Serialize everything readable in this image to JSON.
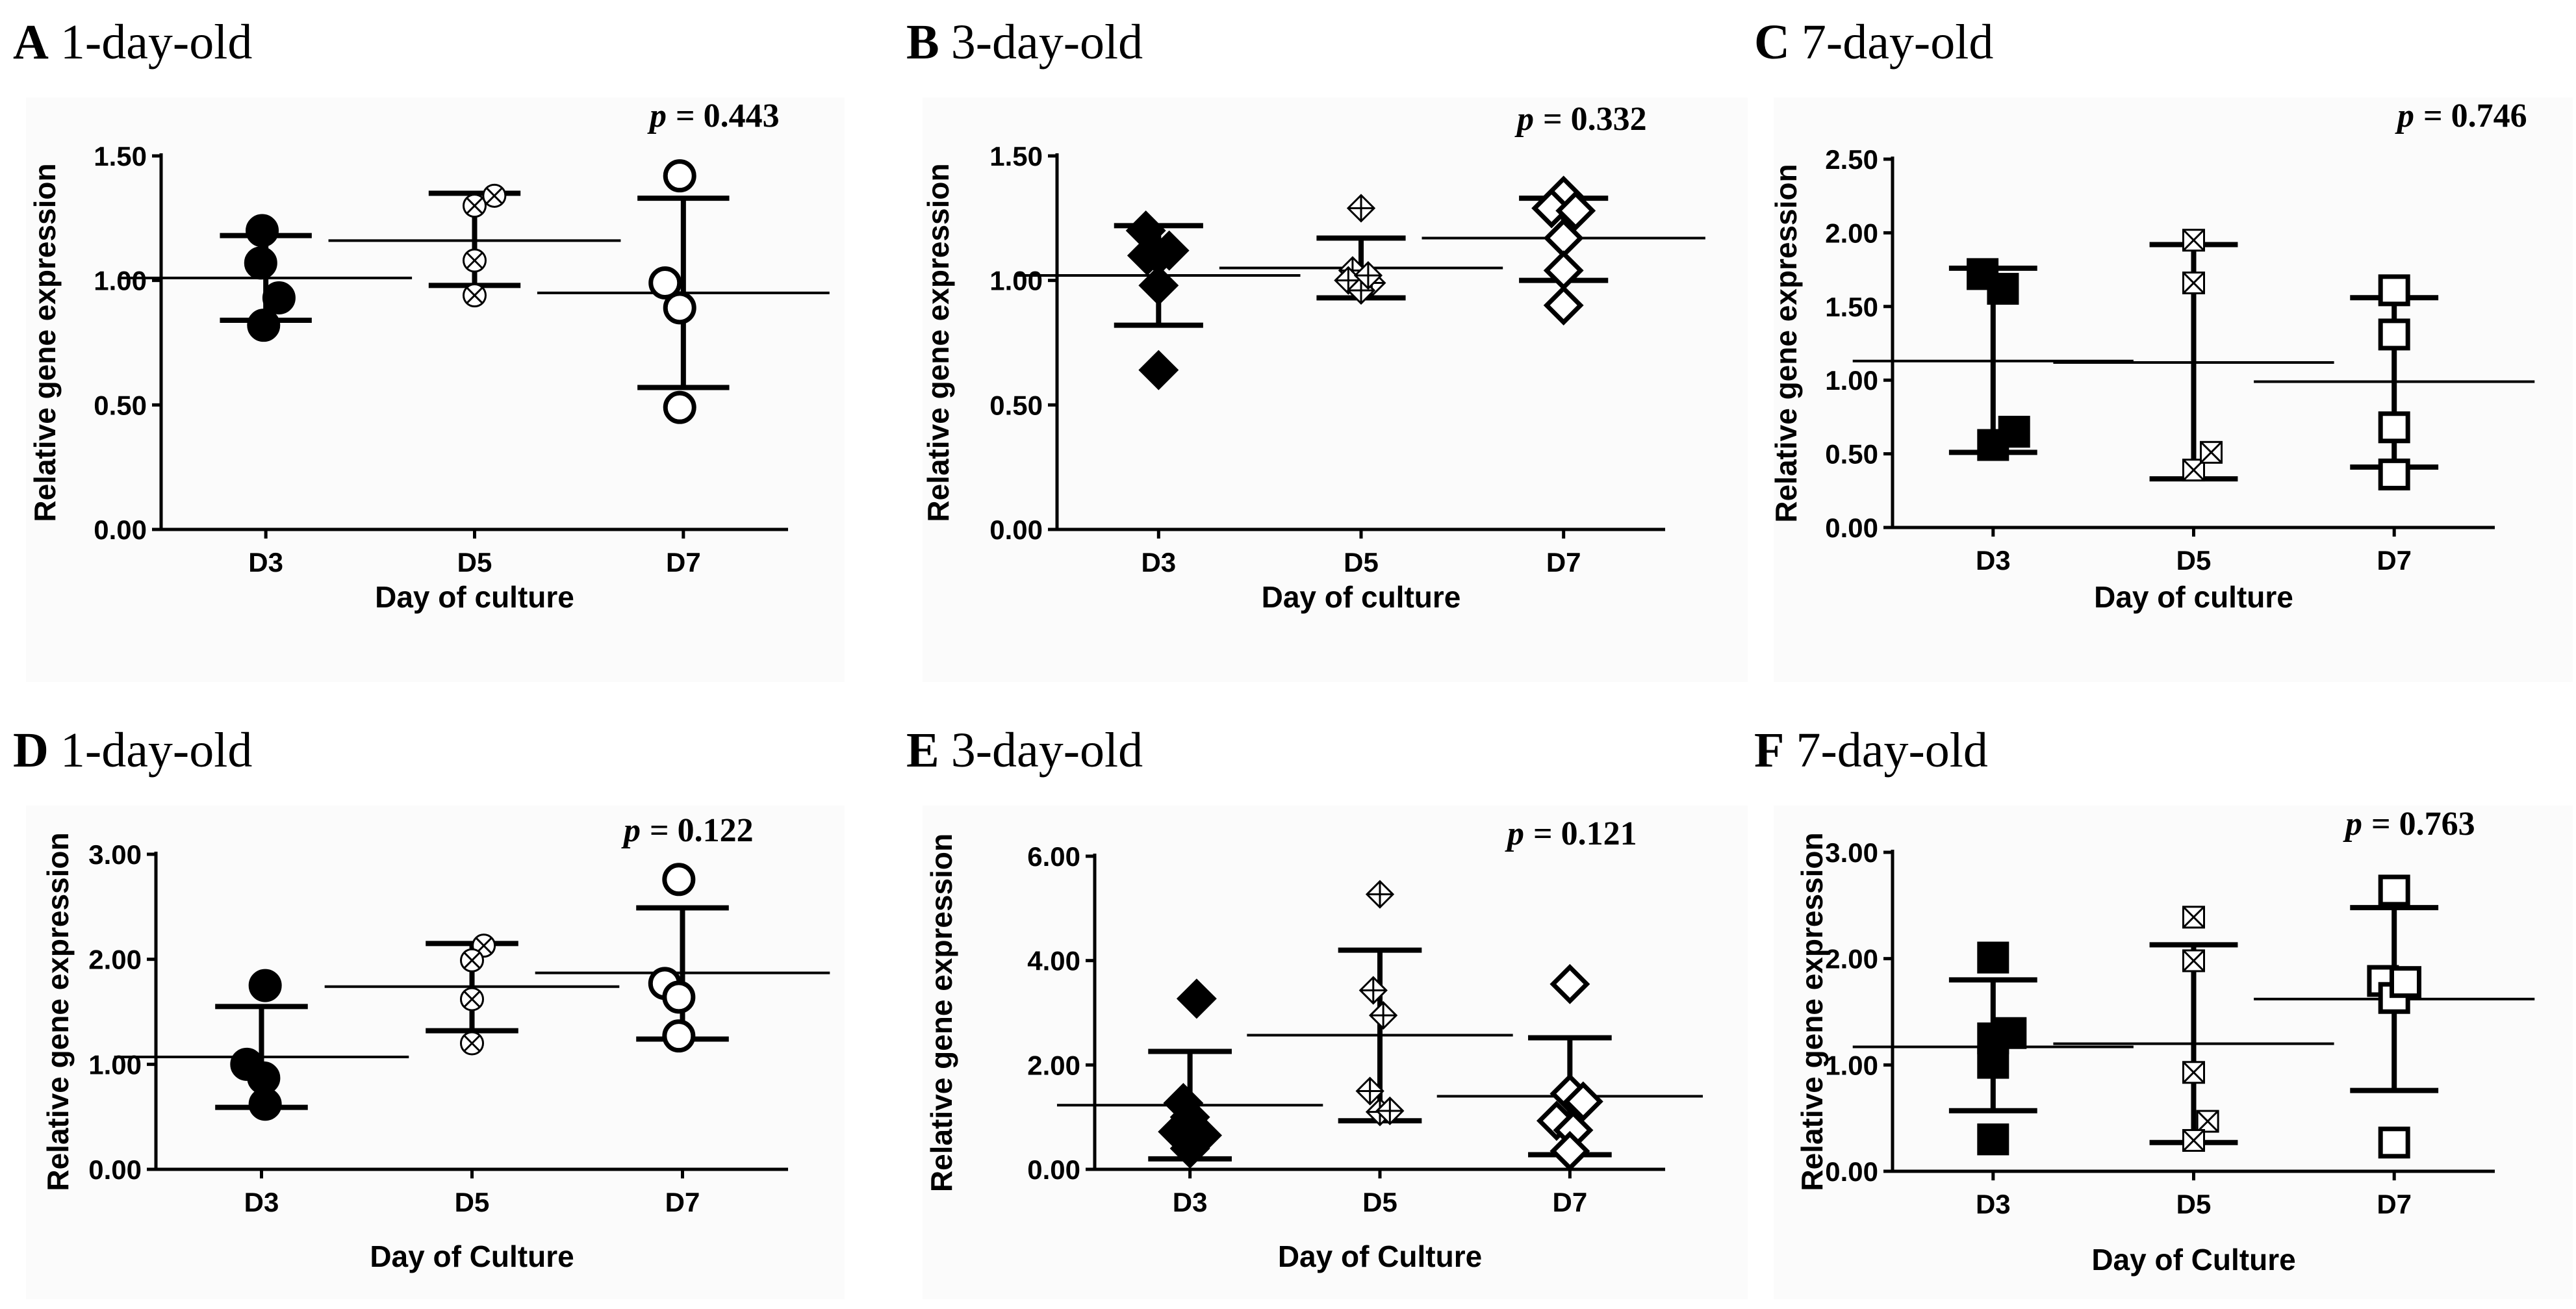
{
  "figure": {
    "groups": [
      "D3",
      "D5",
      "D7"
    ],
    "colors": {
      "ink": "#000000",
      "panel_bg": "#fbfbfb"
    }
  },
  "chart_data": [
    {
      "type": "scatter",
      "letter": "A",
      "title": "1-day-old",
      "p_label": "p",
      "p_value": "= 0.443",
      "xlabel": "Day of culture",
      "ylabel": "Relative gene expression",
      "categories": [
        "D3",
        "D5",
        "D7"
      ],
      "ylim": [
        0,
        1.5
      ],
      "yticks": [
        0,
        0.5,
        1,
        1.5
      ],
      "ytick_labels": [
        "0.00",
        "0.50",
        "1.00",
        "1.50"
      ],
      "series": [
        {
          "name": "D3",
          "marker": "circle-filled",
          "points": [
            [
              -0.05,
              1.2
            ],
            [
              -0.07,
              1.07
            ],
            [
              0.18,
              0.93
            ],
            [
              -0.03,
              0.82
            ]
          ],
          "mean": 1.01,
          "sd_low": 0.84,
          "sd_high": 1.18
        },
        {
          "name": "D5",
          "marker": "circle-x",
          "points": [
            [
              0.0,
              1.3
            ],
            [
              0.27,
              1.34
            ],
            [
              0.0,
              1.08
            ],
            [
              0.0,
              0.94
            ]
          ],
          "mean": 1.16,
          "sd_low": 0.98,
          "sd_high": 1.35
        },
        {
          "name": "D7",
          "marker": "circle-open",
          "points": [
            [
              -0.05,
              1.42
            ],
            [
              -0.25,
              0.99
            ],
            [
              -0.05,
              0.89
            ],
            [
              -0.05,
              0.49
            ]
          ],
          "mean": 0.95,
          "sd_low": 0.57,
          "sd_high": 1.33
        }
      ]
    },
    {
      "type": "scatter",
      "letter": "B",
      "title": "3-day-old",
      "p_label": "p",
      "p_value": "= 0.332",
      "xlabel": "Day of culture",
      "ylabel": "Relative gene expression",
      "categories": [
        "D3",
        "D5",
        "D7"
      ],
      "ylim": [
        0,
        1.5
      ],
      "yticks": [
        0,
        0.5,
        1,
        1.5
      ],
      "ytick_labels": [
        "0.00",
        "0.50",
        "1.00",
        "1.50"
      ],
      "series": [
        {
          "name": "D3",
          "marker": "diamond-filled",
          "points": [
            [
              -0.18,
              1.2
            ],
            [
              -0.16,
              1.1
            ],
            [
              0.15,
              1.12
            ],
            [
              0.0,
              0.98
            ],
            [
              0.0,
              0.64
            ],
            [
              0.0,
              1.1
            ]
          ],
          "mean": 1.02,
          "sd_low": 0.82,
          "sd_high": 1.22
        },
        {
          "name": "D5",
          "marker": "diamond-plus",
          "points": [
            [
              0.0,
              1.29
            ],
            [
              -0.12,
              1.04
            ],
            [
              -0.18,
              1.0
            ],
            [
              0.15,
              0.99
            ],
            [
              0.0,
              0.96
            ],
            [
              0.1,
              1.02
            ]
          ],
          "mean": 1.05,
          "sd_low": 0.93,
          "sd_high": 1.17
        },
        {
          "name": "D7",
          "marker": "diamond-open",
          "points": [
            [
              0.0,
              1.34
            ],
            [
              -0.17,
              1.29
            ],
            [
              0.17,
              1.28
            ],
            [
              0.0,
              1.17
            ],
            [
              0.0,
              1.04
            ],
            [
              0.0,
              0.9
            ]
          ],
          "mean": 1.17,
          "sd_low": 1.0,
          "sd_high": 1.33
        }
      ]
    },
    {
      "type": "scatter",
      "letter": "C",
      "title": "7-day-old",
      "p_label": "p",
      "p_value": "= 0.746",
      "xlabel": "Day of culture",
      "ylabel": "Relative gene expression",
      "categories": [
        "D3",
        "D5",
        "D7"
      ],
      "ylim": [
        0,
        2.5
      ],
      "yticks": [
        0,
        0.5,
        1,
        1.5,
        2,
        2.5
      ],
      "ytick_labels": [
        "0.00",
        "0.50",
        "1.00",
        "1.50",
        "2.00",
        "2.50"
      ],
      "series": [
        {
          "name": "D3",
          "marker": "square-filled",
          "points": [
            [
              -0.15,
              1.72
            ],
            [
              0.14,
              1.62
            ],
            [
              0.0,
              0.56
            ],
            [
              0.3,
              0.65
            ]
          ],
          "mean": 1.13,
          "sd_low": 0.51,
          "sd_high": 1.76
        },
        {
          "name": "D5",
          "marker": "square-x",
          "points": [
            [
              0.0,
              1.95
            ],
            [
              0.0,
              1.66
            ],
            [
              0.0,
              0.39
            ],
            [
              0.25,
              0.51
            ]
          ],
          "mean": 1.12,
          "sd_low": 0.33,
          "sd_high": 1.92
        },
        {
          "name": "D7",
          "marker": "square-open",
          "points": [
            [
              0.0,
              1.61
            ],
            [
              0.0,
              1.31
            ],
            [
              0.0,
              0.68
            ],
            [
              0.0,
              0.36
            ]
          ],
          "mean": 0.99,
          "sd_low": 0.41,
          "sd_high": 1.56
        }
      ]
    },
    {
      "type": "scatter",
      "letter": "D",
      "title": "1-day-old",
      "p_label": "p",
      "p_value": "= 0.122",
      "xlabel": "Day of Culture",
      "ylabel": "Relative gene expression",
      "categories": [
        "D3",
        "D5",
        "D7"
      ],
      "ylim": [
        0,
        3
      ],
      "yticks": [
        0,
        1,
        2,
        3
      ],
      "ytick_labels": [
        "0.00",
        "1.00",
        "2.00",
        "3.00"
      ],
      "series": [
        {
          "name": "D3",
          "marker": "circle-filled",
          "points": [
            [
              0.05,
              1.75
            ],
            [
              -0.2,
              1.0
            ],
            [
              0.03,
              0.87
            ],
            [
              0.05,
              0.62
            ]
          ],
          "mean": 1.07,
          "sd_low": 0.59,
          "sd_high": 1.55
        },
        {
          "name": "D5",
          "marker": "circle-x",
          "points": [
            [
              0.16,
              2.13
            ],
            [
              0.0,
              1.99
            ],
            [
              0.0,
              1.62
            ],
            [
              0.0,
              1.2
            ]
          ],
          "mean": 1.74,
          "sd_low": 1.32,
          "sd_high": 2.15
        },
        {
          "name": "D7",
          "marker": "circle-open",
          "points": [
            [
              -0.05,
              2.76
            ],
            [
              -0.24,
              1.77
            ],
            [
              -0.05,
              1.64
            ],
            [
              -0.05,
              1.27
            ]
          ],
          "mean": 1.87,
          "sd_low": 1.24,
          "sd_high": 2.49
        }
      ]
    },
    {
      "type": "scatter",
      "letter": "E",
      "title": "3-day-old",
      "p_label": "p",
      "p_value": "= 0.121",
      "xlabel": "Day of Culture",
      "ylabel": "Relative gene expression",
      "categories": [
        "D3",
        "D5",
        "D7"
      ],
      "ylim": [
        0,
        6
      ],
      "yticks": [
        0,
        2,
        4,
        6
      ],
      "ytick_labels": [
        "0.00",
        "2.00",
        "4.00",
        "6.00"
      ],
      "series": [
        {
          "name": "D3",
          "marker": "diamond-filled",
          "points": [
            [
              0.1,
              3.27
            ],
            [
              -0.1,
              1.27
            ],
            [
              0.0,
              1.0
            ],
            [
              -0.18,
              0.72
            ],
            [
              0.18,
              0.65
            ],
            [
              0.0,
              0.4
            ]
          ],
          "mean": 1.23,
          "sd_low": 0.2,
          "sd_high": 2.26
        },
        {
          "name": "D5",
          "marker": "diamond-plus",
          "points": [
            [
              0.0,
              5.27
            ],
            [
              -0.1,
              3.43
            ],
            [
              0.05,
              2.95
            ],
            [
              -0.15,
              1.5
            ],
            [
              0.0,
              1.1
            ],
            [
              0.15,
              1.12
            ]
          ],
          "mean": 2.57,
          "sd_low": 0.93,
          "sd_high": 4.2
        },
        {
          "name": "D7",
          "marker": "diamond-open",
          "points": [
            [
              0.0,
              3.55
            ],
            [
              0.0,
              1.45
            ],
            [
              0.2,
              1.3
            ],
            [
              -0.2,
              0.93
            ],
            [
              0.05,
              0.75
            ],
            [
              0.0,
              0.35
            ]
          ],
          "mean": 1.4,
          "sd_low": 0.28,
          "sd_high": 2.52
        }
      ]
    },
    {
      "type": "scatter",
      "letter": "F",
      "title": "7-day-old",
      "p_label": "p",
      "p_value": "= 0.763",
      "xlabel": "Day of Culture",
      "ylabel": "Relative gene expression",
      "categories": [
        "D3",
        "D5",
        "D7"
      ],
      "ylim": [
        0,
        3
      ],
      "yticks": [
        0,
        1,
        2,
        3
      ],
      "ytick_labels": [
        "0.00",
        "1.00",
        "2.00",
        "3.00"
      ],
      "series": [
        {
          "name": "D3",
          "marker": "square-filled",
          "points": [
            [
              0.0,
              2.01
            ],
            [
              0.25,
              1.3
            ],
            [
              0.0,
              1.25
            ],
            [
              0.0,
              1.02
            ],
            [
              0.0,
              0.3
            ]
          ],
          "mean": 1.17,
          "sd_low": 0.57,
          "sd_high": 1.8
        },
        {
          "name": "D5",
          "marker": "square-x",
          "points": [
            [
              0.0,
              2.39
            ],
            [
              0.0,
              1.98
            ],
            [
              0.0,
              0.93
            ],
            [
              0.2,
              0.47
            ],
            [
              0.0,
              0.29
            ]
          ],
          "mean": 1.2,
          "sd_low": 0.27,
          "sd_high": 2.13
        },
        {
          "name": "D7",
          "marker": "square-open",
          "points": [
            [
              0.0,
              2.64
            ],
            [
              -0.16,
              1.79
            ],
            [
              0.0,
              1.63
            ],
            [
              0.16,
              1.78
            ],
            [
              0.0,
              0.27
            ]
          ],
          "mean": 1.62,
          "sd_low": 0.76,
          "sd_high": 2.48
        }
      ]
    }
  ]
}
